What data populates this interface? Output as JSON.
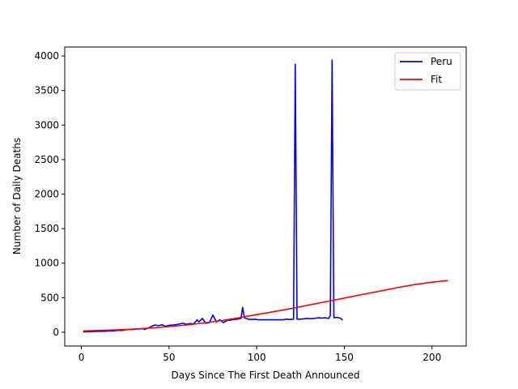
{
  "chart_data": {
    "type": "line",
    "title": "",
    "xlabel": "Days Since The First Death Announced",
    "ylabel": "Number of Daily Deaths",
    "xlim": [
      -9.5,
      219.5
    ],
    "ylim": [
      -200,
      4130
    ],
    "xticks": [
      0,
      50,
      100,
      150,
      200
    ],
    "yticks": [
      0,
      500,
      1000,
      1500,
      2000,
      2500,
      3000,
      3500,
      4000
    ],
    "grid": false,
    "legend_position": "top-right",
    "series": [
      {
        "name": "Peru",
        "color": "#0000ff",
        "x": [
          1,
          3,
          5,
          7,
          9,
          11,
          13,
          15,
          17,
          19,
          21,
          23,
          25,
          27,
          29,
          31,
          33,
          35,
          36,
          38,
          40,
          42,
          44,
          46,
          48,
          50,
          52,
          54,
          56,
          58,
          60,
          62,
          64,
          66,
          67,
          69,
          71,
          73,
          75,
          77,
          79,
          81,
          83,
          85,
          87,
          89,
          91,
          92,
          93,
          95,
          97,
          99,
          101,
          103,
          105,
          107,
          109,
          111,
          113,
          115,
          117,
          119,
          121,
          122,
          123,
          125,
          127,
          129,
          131,
          133,
          135,
          137,
          139,
          141,
          142,
          143,
          144,
          146,
          148,
          149
        ],
        "y": [
          5,
          5,
          8,
          10,
          12,
          15,
          14,
          18,
          20,
          22,
          28,
          25,
          35,
          40,
          42,
          45,
          48,
          52,
          40,
          60,
          85,
          105,
          95,
          110,
          85,
          100,
          105,
          110,
          120,
          130,
          115,
          125,
          120,
          180,
          150,
          200,
          130,
          140,
          250,
          150,
          180,
          140,
          170,
          175,
          185,
          190,
          200,
          360,
          210,
          190,
          185,
          190,
          180,
          180,
          180,
          180,
          180,
          180,
          180,
          180,
          190,
          185,
          190,
          3880,
          190,
          190,
          195,
          200,
          195,
          200,
          210,
          205,
          210,
          200,
          240,
          3940,
          210,
          215,
          200,
          175
        ]
      },
      {
        "name": "Fit",
        "color": "#ff0000",
        "x": [
          1,
          10,
          20,
          30,
          40,
          50,
          60,
          70,
          80,
          90,
          100,
          110,
          120,
          130,
          140,
          150,
          160,
          170,
          180,
          190,
          200,
          209
        ],
        "y": [
          20,
          26,
          35,
          47,
          62,
          82,
          105,
          135,
          170,
          210,
          255,
          300,
          345,
          395,
          445,
          495,
          545,
          595,
          645,
          690,
          725,
          748
        ]
      }
    ]
  }
}
